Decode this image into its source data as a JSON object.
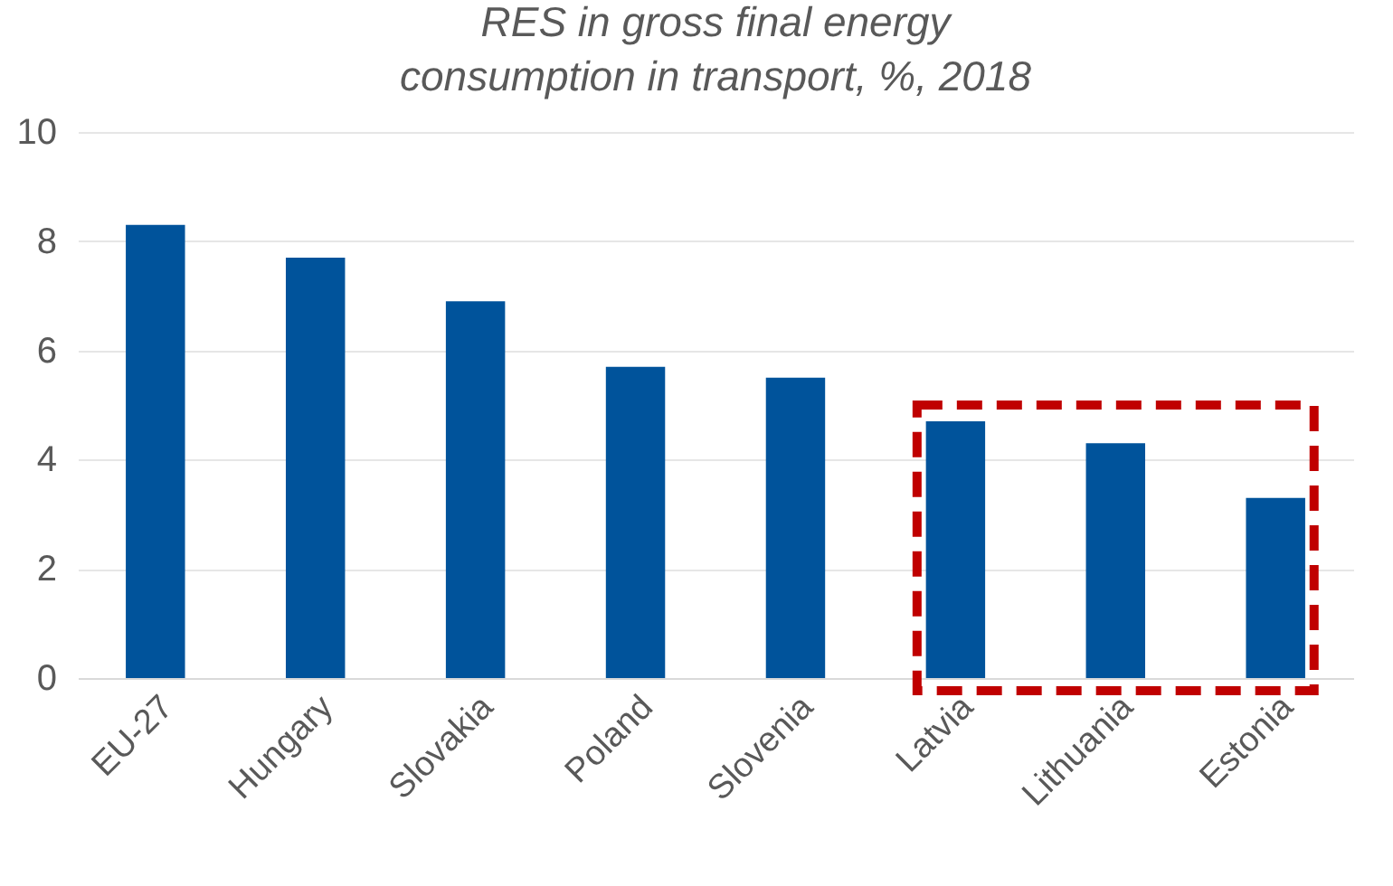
{
  "chart_data": {
    "type": "bar",
    "title": "RES in gross final energy consumption in transport, %, 2018",
    "categories": [
      "EU-27",
      "Hungary",
      "Slovakia",
      "Poland",
      "Slovenia",
      "Latvia",
      "Lithuania",
      "Estonia"
    ],
    "values": [
      8.3,
      7.7,
      6.9,
      5.7,
      5.5,
      4.7,
      4.3,
      3.3
    ],
    "color": "#00539b",
    "ylim": [
      0,
      10
    ],
    "yticks": [
      0,
      2,
      4,
      6,
      8,
      10
    ],
    "grid": "y"
  }
}
